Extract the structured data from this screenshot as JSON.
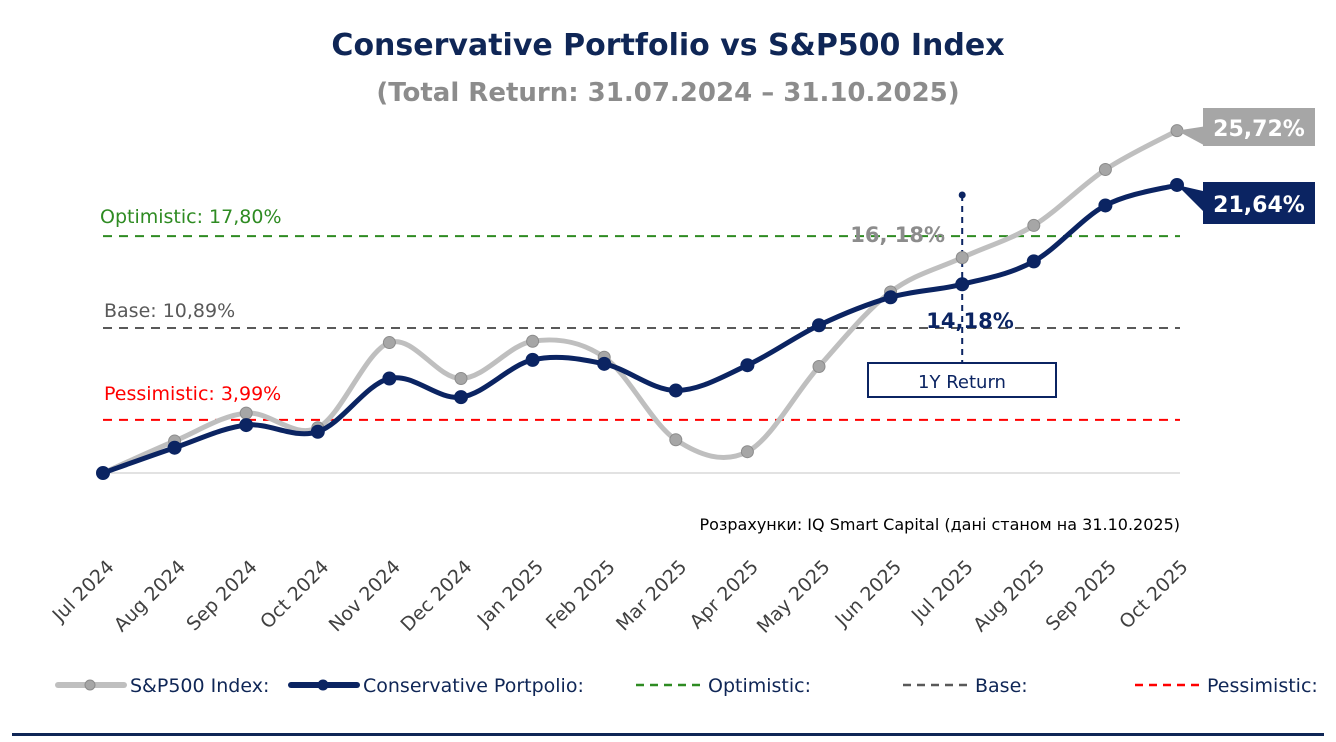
{
  "chart_data": {
    "type": "line",
    "title": "Conservative Portfolio vs S&P500 Index",
    "subtitle": "(Total Return: 31.07.2024 – 31.10.2025)",
    "categories": [
      "Jul 2024",
      "Aug 2024",
      "Sep 2024",
      "Oct 2024",
      "Nov 2024",
      "Dec 2024",
      "Jan 2025",
      "Feb 2025",
      "Mar 2025",
      "Apr 2025",
      "May 2025",
      "Jun 2025",
      "Jul 2025",
      "Aug 2025",
      "Sep 2025",
      "Oct 2025"
    ],
    "series": [
      {
        "name": "S&P500 Index:",
        "color": "#bfbfbf",
        "marker_color": "#a6a6a6",
        "values": [
          0,
          2.4,
          4.5,
          3.4,
          9.8,
          7.1,
          9.9,
          8.7,
          2.5,
          1.6,
          8.0,
          13.6,
          16.18,
          18.6,
          22.8,
          25.72
        ]
      },
      {
        "name": "Conservative Portpolio:",
        "color": "#0b2462",
        "marker_color": "#0b2462",
        "values": [
          0,
          1.9,
          3.6,
          3.1,
          7.1,
          5.7,
          8.5,
          8.2,
          6.2,
          8.1,
          11.1,
          13.2,
          14.18,
          15.9,
          20.1,
          21.64
        ]
      }
    ],
    "reference_lines": [
      {
        "name": "Optimistic:",
        "label": "Optimistic: 17,80%",
        "value": 17.8,
        "color": "#2e8b22"
      },
      {
        "name": "Base:",
        "label": "Base: 10,89%",
        "value": 10.89,
        "color": "#595959"
      },
      {
        "name": "Pessimistic:",
        "label": "Pessimistic: 3,99%",
        "value": 3.99,
        "color": "#ff0000"
      }
    ],
    "annotations": {
      "sp_end_label": "25,72%",
      "portfolio_end_label": "21,64%",
      "sp_1y_label": "16, 18%",
      "portfolio_1y_label": "14,18%",
      "one_year_box": "1Y Return",
      "one_year_category": "Jul 2025",
      "source": "Розрахунки: IQ Smart Capital (дані станом на 31.10.2025)"
    },
    "ylim": [
      0,
      26
    ],
    "grid": false,
    "legend_placement": "bottom"
  }
}
